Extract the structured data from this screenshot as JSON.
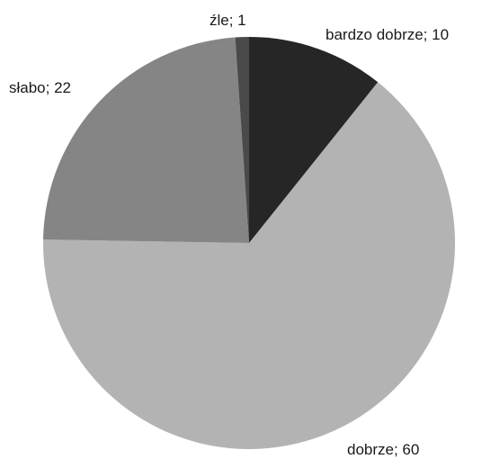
{
  "chart_data": {
    "type": "pie",
    "title": "",
    "categories": [
      "bardzo dobrze",
      "dobrze",
      "słabo",
      "źle"
    ],
    "values": [
      10,
      60,
      22,
      1
    ],
    "labels": [
      "bardzo dobrze; 10",
      "dobrze; 60",
      "słabo; 22",
      "źle; 1"
    ],
    "colors": [
      "#262626",
      "#b3b3b3",
      "#858585",
      "#4a4a4a"
    ],
    "legend": "none",
    "start": "12 o'clock",
    "direction": "clockwise"
  }
}
